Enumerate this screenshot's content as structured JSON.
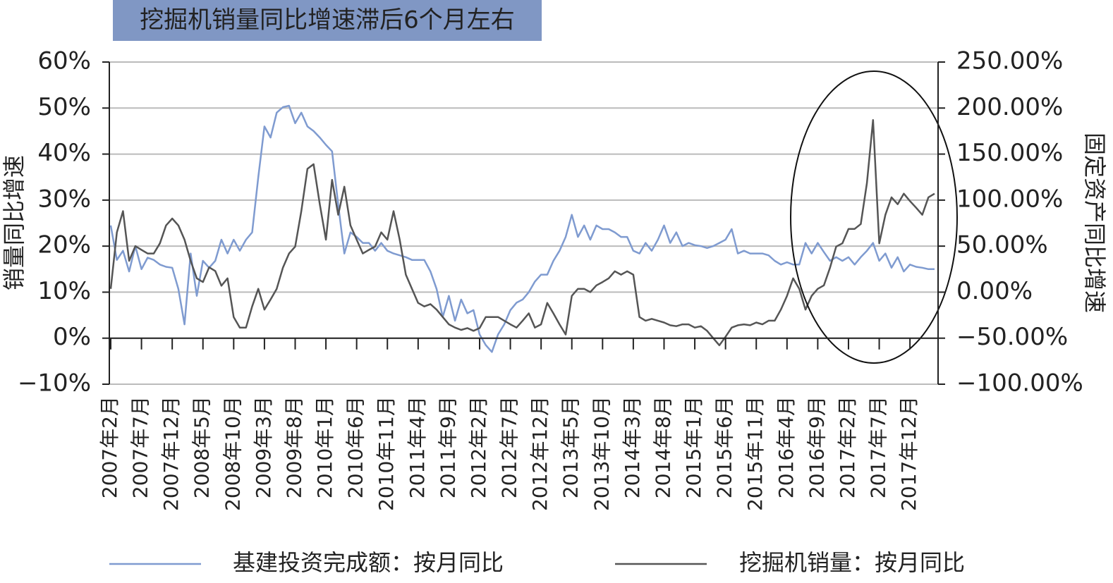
{
  "chart_data": {
    "type": "line",
    "title": "挖掘机销量同比增速滞后6个月左右",
    "ylabel": "销量同比增速",
    "y2label": "固定资产同比增速",
    "categories": [
      "2007年2月",
      null,
      null,
      null,
      null,
      "2007年7月",
      null,
      null,
      null,
      null,
      "2007年12月",
      null,
      null,
      null,
      null,
      "2008年5月",
      null,
      null,
      null,
      null,
      "2008年10月",
      null,
      null,
      null,
      null,
      "2009年3月",
      null,
      null,
      null,
      null,
      "2009年8月",
      null,
      null,
      null,
      null,
      "2010年1月",
      null,
      null,
      null,
      null,
      "2010年6月",
      null,
      null,
      null,
      null,
      "2010年11月",
      null,
      null,
      null,
      null,
      "2011年4月",
      null,
      null,
      null,
      null,
      "2011年9月",
      null,
      null,
      null,
      null,
      "2012年2月",
      null,
      null,
      null,
      null,
      "2012年7月",
      null,
      null,
      null,
      null,
      "2012年12月",
      null,
      null,
      null,
      null,
      "2013年5月",
      null,
      null,
      null,
      null,
      "2013年10月",
      null,
      null,
      null,
      null,
      "2014年3月",
      null,
      null,
      null,
      null,
      "2014年8月",
      null,
      null,
      null,
      null,
      "2015年1月",
      null,
      null,
      null,
      null,
      "2015年6月",
      null,
      null,
      null,
      null,
      "2015年11月",
      null,
      null,
      null,
      null,
      "2016年4月",
      null,
      null,
      null,
      null,
      "2016年9月",
      null,
      null,
      null,
      null,
      "2017年2月",
      null,
      null,
      null,
      null,
      "2017年7月",
      null,
      null,
      null,
      null,
      "2017年12月",
      null,
      null,
      null,
      null
    ],
    "series": [
      {
        "name": "基建投资完成额：按月同比",
        "color": "#7f9bd0",
        "axis": "y",
        "values": [
          24.5,
          17,
          19,
          14.5,
          20,
          15,
          17.5,
          17,
          16,
          15.5,
          15.3,
          10.7,
          3,
          18.4,
          9.2,
          16.8,
          15.3,
          16.8,
          21.4,
          18.4,
          21.4,
          19,
          21.4,
          23,
          35,
          46,
          43.6,
          49,
          50.2,
          50.5,
          46.7,
          49,
          46,
          45,
          43.6,
          42,
          40.6,
          29,
          18.4,
          23,
          22,
          20.7,
          20.7,
          19,
          20.7,
          19,
          18.4,
          18,
          17.6,
          17,
          17,
          17,
          14.5,
          10.7,
          4.6,
          9.2,
          3.8,
          8.4,
          5.4,
          6.1,
          0.8,
          -1.5,
          -3,
          0.8,
          3,
          6.1,
          7.7,
          8.4,
          10,
          12.3,
          13.8,
          13.8,
          16.8,
          19,
          22,
          26.8,
          22,
          24.5,
          21.4,
          24.5,
          23.7,
          23.7,
          23,
          22,
          22,
          19,
          18.4,
          20.7,
          19,
          21.4,
          24.5,
          20.7,
          23,
          20,
          20.7,
          20.2,
          20,
          19.6,
          20,
          20.7,
          21.4,
          23.7,
          18.4,
          19,
          18.4,
          18.4,
          18.4,
          18,
          16.8,
          16,
          16.5,
          16,
          16,
          20.7,
          18.4,
          20.7,
          18.7,
          16.8,
          17.6,
          16.8,
          17.6,
          16,
          17.6,
          19,
          20.7,
          16.8,
          18.4,
          15.3,
          17.6,
          14.5,
          16,
          15.5,
          15.3,
          15,
          15
        ]
      },
      {
        "name": "挖掘机销量：按月同比",
        "color": "#555555",
        "axis": "y2",
        "values": [
          3.6,
          65,
          88,
          34,
          50,
          46,
          42,
          42,
          53,
          72.5,
          80,
          72.5,
          57,
          34,
          15,
          11,
          27,
          23,
          7,
          15,
          -27,
          -38.5,
          -38.5,
          -15.5,
          3.6,
          -19,
          -8,
          3.6,
          26.6,
          42,
          49.5,
          88,
          134,
          139,
          95.5,
          57,
          122,
          84,
          114.6,
          72.5,
          57,
          42,
          46,
          49.5,
          65,
          57,
          88,
          57,
          19,
          3.6,
          -11.7,
          -15.5,
          -13,
          -19,
          -27,
          -35,
          -38.5,
          -41,
          -39,
          -42,
          -39,
          -27,
          -27,
          -27,
          -31,
          -35,
          -38.5,
          -31,
          -23,
          -38.5,
          -35,
          -11.7,
          -23,
          -35,
          -46,
          -4,
          3.6,
          3.6,
          0,
          7.4,
          11,
          15,
          22.7,
          19,
          22.7,
          19,
          -27,
          -31,
          -29,
          -31,
          -33,
          -36,
          -37,
          -35,
          -35,
          -38.5,
          -37,
          -42,
          -50,
          -57.7,
          -48.5,
          -38.5,
          -36,
          -35,
          -36,
          -33,
          -35,
          -31,
          -31,
          -19,
          -4,
          15,
          3.6,
          -19,
          -4,
          3.6,
          7.4,
          26.6,
          49.5,
          53,
          68.7,
          68.7,
          74,
          118.5,
          187,
          53,
          84,
          103,
          95.5,
          107,
          99,
          91.7,
          84,
          103,
          107
        ]
      }
    ],
    "ylim": [
      -10,
      60
    ],
    "yticks": [
      {
        "value": -10,
        "label": "−10%"
      },
      {
        "value": 0,
        "label": "0%"
      },
      {
        "value": 10,
        "label": "10%"
      },
      {
        "value": 20,
        "label": "20%"
      },
      {
        "value": 30,
        "label": "30%"
      },
      {
        "value": 40,
        "label": "40%"
      },
      {
        "value": 50,
        "label": "50%"
      },
      {
        "value": 60,
        "label": "60%"
      }
    ],
    "y2lim": [
      -100,
      250
    ],
    "y2ticks": [
      {
        "value": -100,
        "label": "−100.00%"
      },
      {
        "value": -50,
        "label": "−50.00%"
      },
      {
        "value": 0,
        "label": "0.00%"
      },
      {
        "value": 50,
        "label": "50.00%"
      },
      {
        "value": 100,
        "label": "100.00%"
      },
      {
        "value": 150,
        "label": "150.00%"
      },
      {
        "value": 200,
        "label": "200.00%"
      },
      {
        "value": 250,
        "label": "250.00%"
      }
    ],
    "grid": true
  }
}
